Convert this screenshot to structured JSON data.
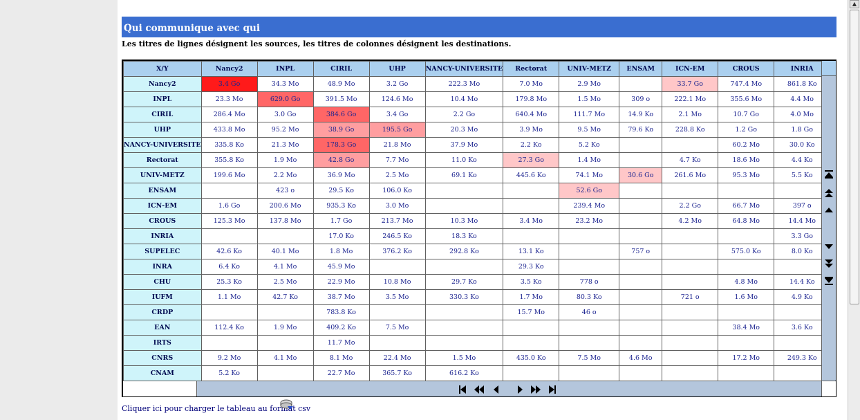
{
  "title": "Qui communique avec qui",
  "subtitle": "Les titres de lignes désignent les sources, les titres de colonnes désignent les destinations.",
  "corner_label": "X/Y",
  "columns": [
    "Nancy2",
    "INPL",
    "CIRIL",
    "UHP",
    "NANCY-UNIVERSITE",
    "Rectorat",
    "UNIV-METZ",
    "ENSAM",
    "ICN-EM",
    "CROUS",
    "INRIA"
  ],
  "rows": [
    {
      "name": "Nancy2",
      "cells": [
        "3.4 Go",
        "34.3 Mo",
        "48.9 Mo",
        "3.2 Go",
        "222.3 Mo",
        "7.0 Mo",
        "2.9 Mo",
        "",
        "33.7 Go",
        "747.4 Mo",
        "861.8 Ko"
      ]
    },
    {
      "name": "INPL",
      "cells": [
        "23.3 Mo",
        "629.0 Go",
        "391.5 Mo",
        "124.6 Mo",
        "10.4 Mo",
        "179.8 Mo",
        "1.5 Mo",
        "309 o",
        "222.1 Mo",
        "355.6 Mo",
        "4.4 Mo"
      ]
    },
    {
      "name": "CIRIL",
      "cells": [
        "286.4 Mo",
        "3.0 Go",
        "384.6 Go",
        "3.4 Go",
        "2.2 Go",
        "640.4 Mo",
        "111.7 Mo",
        "14.9 Ko",
        "2.1 Mo",
        "10.7 Go",
        "4.0 Mo"
      ]
    },
    {
      "name": "UHP",
      "cells": [
        "433.8 Mo",
        "95.2 Mo",
        "38.9 Go",
        "195.5 Go",
        "20.3 Mo",
        "3.9 Mo",
        "9.5 Mo",
        "79.6 Ko",
        "228.8 Ko",
        "1.2 Go",
        "1.8 Go"
      ]
    },
    {
      "name": "NANCY-UNIVERSITE",
      "cells": [
        "335.8 Ko",
        "21.3 Mo",
        "178.3 Go",
        "21.8 Mo",
        "37.9 Mo",
        "2.2 Ko",
        "5.2 Ko",
        "",
        "",
        "60.2 Mo",
        "30.0 Ko"
      ]
    },
    {
      "name": "Rectorat",
      "cells": [
        "355.8 Ko",
        "1.9 Mo",
        "42.8 Go",
        "7.7 Mo",
        "11.0 Ko",
        "27.3 Go",
        "1.4 Mo",
        "",
        "4.7 Ko",
        "18.6 Mo",
        "4.4 Ko"
      ]
    },
    {
      "name": "UNIV-METZ",
      "cells": [
        "199.6 Mo",
        "2.2 Mo",
        "36.9 Mo",
        "2.5 Mo",
        "69.1 Ko",
        "445.6 Ko",
        "74.1 Mo",
        "30.6 Go",
        "261.6 Mo",
        "95.3 Mo",
        "5.5 Ko"
      ]
    },
    {
      "name": "ENSAM",
      "cells": [
        "",
        "423 o",
        "29.5 Ko",
        "106.0 Ko",
        "",
        "",
        "52.6 Go",
        "",
        "",
        "",
        ""
      ]
    },
    {
      "name": "ICN-EM",
      "cells": [
        "1.6 Go",
        "200.6 Mo",
        "935.3 Ko",
        "3.0 Mo",
        "",
        "",
        "239.4 Mo",
        "",
        "2.2 Go",
        "66.7 Mo",
        "397 o"
      ]
    },
    {
      "name": "CROUS",
      "cells": [
        "125.3 Mo",
        "137.8 Mo",
        "1.7 Go",
        "213.7 Mo",
        "10.3 Mo",
        "3.4 Mo",
        "23.2 Mo",
        "",
        "4.2 Mo",
        "64.8 Mo",
        "14.4 Mo"
      ]
    },
    {
      "name": "INRIA",
      "cells": [
        "",
        "",
        "17.0 Ko",
        "246.5 Ko",
        "18.3 Ko",
        "",
        "",
        "",
        "",
        "",
        "3.3 Go"
      ]
    },
    {
      "name": "SUPELEC",
      "cells": [
        "42.6 Ko",
        "40.1 Mo",
        "1.8 Mo",
        "376.2 Ko",
        "292.8 Ko",
        "13.1 Ko",
        "",
        "757 o",
        "",
        "575.0 Ko",
        "8.0 Ko"
      ]
    },
    {
      "name": "INRA",
      "cells": [
        "6.4 Ko",
        "4.1 Mo",
        "45.9 Mo",
        "",
        "",
        "29.3 Ko",
        "",
        "",
        "",
        "",
        ""
      ]
    },
    {
      "name": "CHU",
      "cells": [
        "25.3 Ko",
        "2.5 Mo",
        "22.9 Mo",
        "10.8 Mo",
        "29.7 Ko",
        "3.5 Ko",
        "778 o",
        "",
        "",
        "4.8 Mo",
        "14.4 Ko"
      ]
    },
    {
      "name": "IUFM",
      "cells": [
        "1.1 Mo",
        "42.7 Ko",
        "38.7 Mo",
        "3.5 Mo",
        "330.3 Ko",
        "1.7 Mo",
        "80.3 Ko",
        "",
        "721 o",
        "1.6 Mo",
        "4.9 Ko"
      ]
    },
    {
      "name": "CRDP",
      "cells": [
        "",
        "",
        "783.8 Ko",
        "",
        "",
        "15.7 Mo",
        "46 o",
        "",
        "",
        "",
        ""
      ]
    },
    {
      "name": "EAN",
      "cells": [
        "112.4 Ko",
        "1.9 Mo",
        "409.2 Ko",
        "7.5 Mo",
        "",
        "",
        "",
        "",
        "",
        "38.4 Mo",
        "3.6 Ko"
      ]
    },
    {
      "name": "IRTS",
      "cells": [
        "",
        "",
        "11.7 Mo",
        "",
        "",
        "",
        "",
        "",
        "",
        "",
        ""
      ]
    },
    {
      "name": "CNRS",
      "cells": [
        "9.2 Mo",
        "4.1 Mo",
        "8.1 Mo",
        "22.4 Mo",
        "1.5 Mo",
        "435.0 Ko",
        "7.5 Mo",
        "4.6 Mo",
        "",
        "17.2 Mo",
        "249.3 Ko"
      ]
    },
    {
      "name": "CNAM",
      "cells": [
        "5.2 Ko",
        "",
        "22.7 Mo",
        "365.7 Ko",
        "616.2 Ko",
        "",
        "",
        "",
        "",
        "",
        ""
      ]
    }
  ],
  "highlights": [
    {
      "row": 0,
      "col": 0,
      "level": 1
    },
    {
      "row": 0,
      "col": 8,
      "level": 4
    },
    {
      "row": 1,
      "col": 1,
      "level": 2
    },
    {
      "row": 2,
      "col": 2,
      "level": 2
    },
    {
      "row": 3,
      "col": 2,
      "level": 3
    },
    {
      "row": 3,
      "col": 3,
      "level": 3
    },
    {
      "row": 4,
      "col": 2,
      "level": 2
    },
    {
      "row": 5,
      "col": 2,
      "level": 3
    },
    {
      "row": 5,
      "col": 5,
      "level": 4
    },
    {
      "row": 6,
      "col": 7,
      "level": 4
    },
    {
      "row": 7,
      "col": 6,
      "level": 4
    }
  ],
  "heat_colors": {
    "1": "#ff1a1a",
    "2": "#ff6666",
    "3": "#ff9ea0",
    "4": "#ffc7c8"
  },
  "header_color": "#abd0ef",
  "row_header_color": "#cff4fa",
  "title_bar_color": "#3a6ed0",
  "nav_panel_color": "#b4c6dc",
  "vertical_nav": [
    "scroll-top-icon",
    "scroll-page-up-icon",
    "scroll-up-icon",
    "scroll-down-icon",
    "scroll-page-down-icon",
    "scroll-bottom-icon"
  ],
  "horizontal_nav": [
    "first-icon",
    "fast-back-icon",
    "back-icon",
    "forward-icon",
    "fast-forward-icon",
    "last-icon"
  ],
  "csv_link": "Cliquer ici pour charger le tableau au format csv"
}
